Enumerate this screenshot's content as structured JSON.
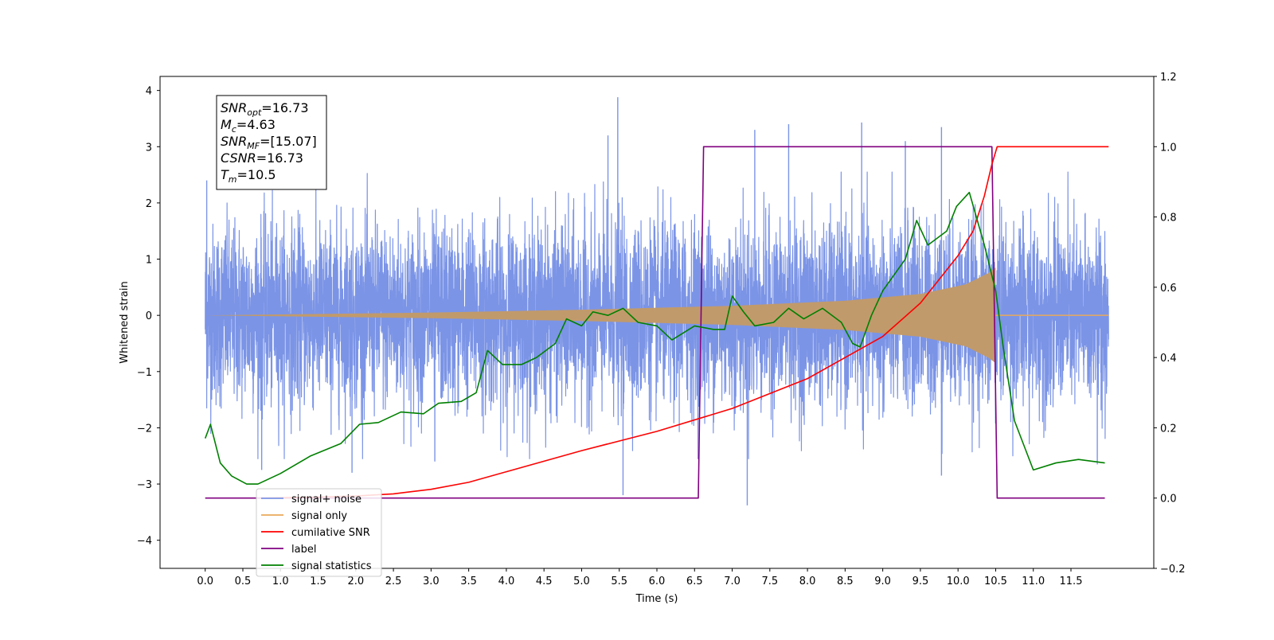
{
  "chart_data": {
    "type": "line",
    "xlabel": "Time (s)",
    "ylabel": "Whitened strain",
    "xlim": [
      -0.6,
      12.6
    ],
    "ylim": [
      -4.5,
      4.25
    ],
    "y2lim": [
      -0.2,
      1.2
    ],
    "x_ticks": [
      0.0,
      0.5,
      1.0,
      1.5,
      2.0,
      2.5,
      3.0,
      3.5,
      4.0,
      4.5,
      5.0,
      5.5,
      6.0,
      6.5,
      7.0,
      7.5,
      8.0,
      8.5,
      9.0,
      9.5,
      10.0,
      10.5,
      11.0,
      11.5
    ],
    "x_tick_labels": [
      "0.0",
      "0.5",
      "1.0",
      "1.5",
      "2.0",
      "2.5",
      "3.0",
      "3.5",
      "4.0",
      "4.5",
      "5.0",
      "5.5",
      "6.0",
      "6.5",
      "7.0",
      "7.5",
      "8.0",
      "8.5",
      "9.0",
      "9.5",
      "10.0",
      "10.5",
      "11.0",
      "11.5"
    ],
    "y_ticks": [
      -4,
      -3,
      -2,
      -1,
      0,
      1,
      2,
      3,
      4
    ],
    "y_tick_labels": [
      "−4",
      "−3",
      "−2",
      "−1",
      "0",
      "1",
      "2",
      "3",
      "4"
    ],
    "y2_ticks": [
      -0.2,
      0.0,
      0.2,
      0.4,
      0.6,
      0.8,
      1.0,
      1.2
    ],
    "y2_tick_labels": [
      "−0.2",
      "0.0",
      "0.2",
      "0.4",
      "0.6",
      "0.8",
      "1.0",
      "1.2"
    ],
    "grid": false,
    "legend_placement": "lower-left",
    "annotation_lines": [
      {
        "base": "SNR",
        "sub": "opt",
        "rest": "=16.73"
      },
      {
        "base": "M",
        "sub": "c",
        "rest": "=4.63"
      },
      {
        "base": "SNR",
        "sub": "MF",
        "rest": "=[15.07]"
      },
      {
        "base": "CSNR",
        "sub": "",
        "rest": "=16.73"
      },
      {
        "base": "T",
        "sub": "m",
        "rest": "=10.5"
      }
    ],
    "signal_noise": {
      "name": "signal+ noise",
      "color": "#7b94e6",
      "x_start": 0.0,
      "x_end": 12.0,
      "n_samples": 6000,
      "sigma": 0.8,
      "peaks": [
        {
          "x": 0.02,
          "y": 2.4
        },
        {
          "x": 5.48,
          "y": 3.88
        },
        {
          "x": 5.55,
          "y": -3.2
        },
        {
          "x": 5.35,
          "y": 3.2
        },
        {
          "x": 7.2,
          "y": -3.38
        },
        {
          "x": 7.3,
          "y": 3.3
        },
        {
          "x": 7.75,
          "y": 3.4
        },
        {
          "x": 8.72,
          "y": 3.43
        },
        {
          "x": 9.78,
          "y": 3.35
        },
        {
          "x": 9.3,
          "y": 3.1
        },
        {
          "x": 0.75,
          "y": -2.75
        },
        {
          "x": 1.95,
          "y": -2.8
        },
        {
          "x": 3.05,
          "y": -2.6
        },
        {
          "x": 9.78,
          "y": -2.85
        },
        {
          "x": 11.85,
          "y": -2.65
        }
      ]
    },
    "signal_only": {
      "name": "signal only",
      "color": "#e8a95a",
      "fill_color": "#c19a6b",
      "x_start": 0.0,
      "x_end": 12.0,
      "chirp_start": 0.0,
      "merger": 10.5,
      "envelope": [
        [
          0.0,
          0.0
        ],
        [
          3.0,
          0.05
        ],
        [
          5.0,
          0.1
        ],
        [
          7.0,
          0.17
        ],
        [
          8.5,
          0.26
        ],
        [
          9.5,
          0.38
        ],
        [
          10.1,
          0.55
        ],
        [
          10.4,
          0.75
        ],
        [
          10.5,
          0.85
        ]
      ]
    },
    "cumulative_snr": {
      "name": "cumilative SNR",
      "color": "#ff0000",
      "points": [
        [
          0.75,
          0.0
        ],
        [
          1.5,
          0.003
        ],
        [
          2.0,
          0.006
        ],
        [
          2.5,
          0.012
        ],
        [
          3.0,
          0.025
        ],
        [
          3.5,
          0.045
        ],
        [
          4.0,
          0.075
        ],
        [
          5.0,
          0.135
        ],
        [
          6.0,
          0.19
        ],
        [
          7.0,
          0.255
        ],
        [
          8.0,
          0.34
        ],
        [
          9.0,
          0.46
        ],
        [
          9.5,
          0.555
        ],
        [
          10.0,
          0.69
        ],
        [
          10.2,
          0.76
        ],
        [
          10.35,
          0.86
        ],
        [
          10.45,
          0.95
        ],
        [
          10.52,
          1.0
        ],
        [
          12.0,
          1.0
        ]
      ]
    },
    "label": {
      "name": "label",
      "color": "#800080",
      "points": [
        [
          0.0,
          0.0
        ],
        [
          6.55,
          0.0
        ],
        [
          6.62,
          1.0
        ],
        [
          10.45,
          1.0
        ],
        [
          10.52,
          0.0
        ],
        [
          11.95,
          0.0
        ]
      ]
    },
    "signal_statistics": {
      "name": "signal statistics",
      "color": "#008000",
      "points": [
        [
          0.0,
          0.17
        ],
        [
          0.07,
          0.21
        ],
        [
          0.2,
          0.1
        ],
        [
          0.35,
          0.063
        ],
        [
          0.55,
          0.04
        ],
        [
          0.7,
          0.04
        ],
        [
          1.0,
          0.07
        ],
        [
          1.4,
          0.12
        ],
        [
          1.8,
          0.155
        ],
        [
          2.05,
          0.21
        ],
        [
          2.3,
          0.215
        ],
        [
          2.6,
          0.245
        ],
        [
          2.9,
          0.24
        ],
        [
          3.1,
          0.27
        ],
        [
          3.4,
          0.275
        ],
        [
          3.6,
          0.3
        ],
        [
          3.75,
          0.42
        ],
        [
          3.95,
          0.38
        ],
        [
          4.2,
          0.38
        ],
        [
          4.4,
          0.4
        ],
        [
          4.65,
          0.44
        ],
        [
          4.8,
          0.51
        ],
        [
          5.0,
          0.49
        ],
        [
          5.15,
          0.53
        ],
        [
          5.35,
          0.52
        ],
        [
          5.55,
          0.54
        ],
        [
          5.75,
          0.5
        ],
        [
          6.0,
          0.49
        ],
        [
          6.2,
          0.45
        ],
        [
          6.5,
          0.49
        ],
        [
          6.75,
          0.48
        ],
        [
          6.9,
          0.48
        ],
        [
          7.0,
          0.575
        ],
        [
          7.15,
          0.53
        ],
        [
          7.3,
          0.49
        ],
        [
          7.55,
          0.5
        ],
        [
          7.75,
          0.54
        ],
        [
          7.95,
          0.51
        ],
        [
          8.2,
          0.54
        ],
        [
          8.45,
          0.5
        ],
        [
          8.6,
          0.44
        ],
        [
          8.7,
          0.43
        ],
        [
          8.85,
          0.52
        ],
        [
          9.0,
          0.59
        ],
        [
          9.3,
          0.68
        ],
        [
          9.45,
          0.79
        ],
        [
          9.6,
          0.72
        ],
        [
          9.85,
          0.76
        ],
        [
          9.98,
          0.83
        ],
        [
          10.15,
          0.87
        ],
        [
          10.35,
          0.72
        ],
        [
          10.5,
          0.59
        ],
        [
          10.6,
          0.43
        ],
        [
          10.75,
          0.22
        ],
        [
          11.0,
          0.08
        ],
        [
          11.3,
          0.1
        ],
        [
          11.6,
          0.11
        ],
        [
          11.95,
          0.1
        ]
      ]
    }
  }
}
